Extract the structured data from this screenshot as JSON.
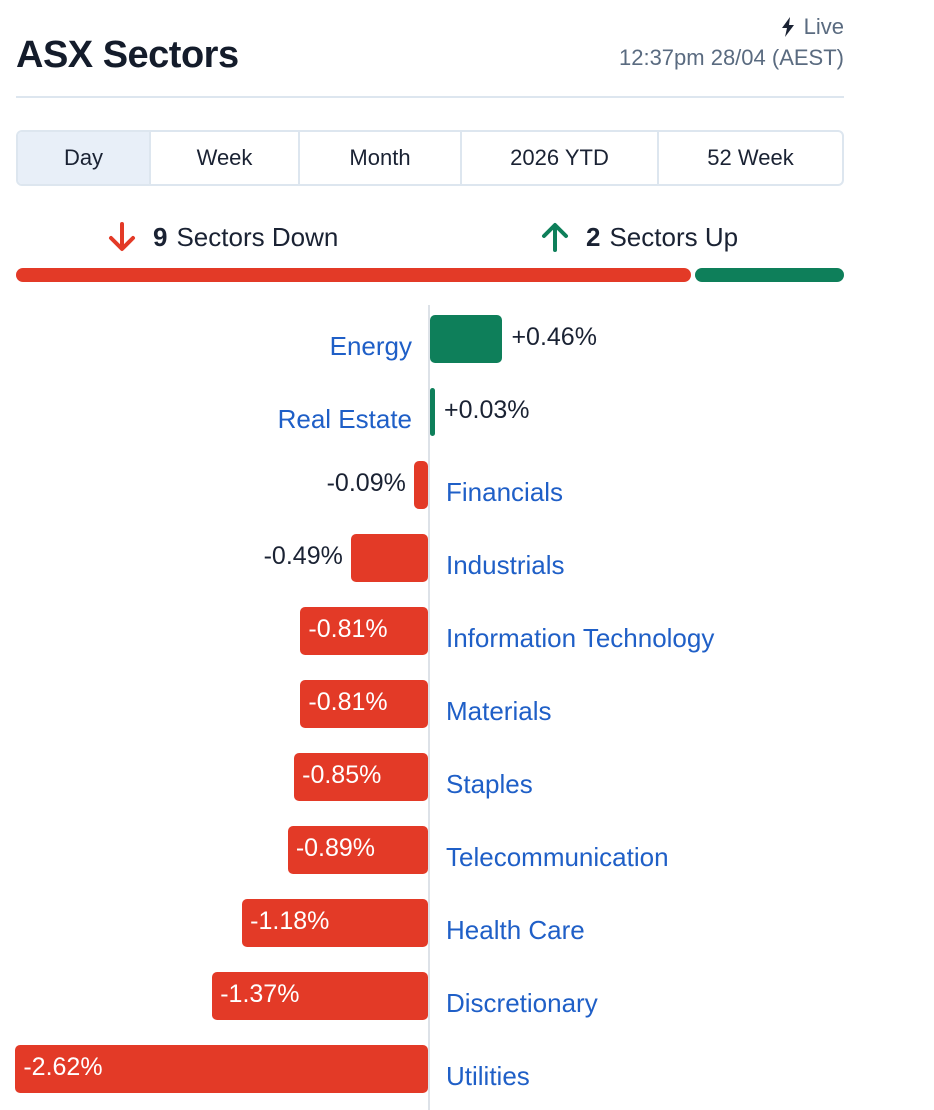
{
  "header": {
    "title": "ASX Sectors",
    "live_label": "Live",
    "timestamp": "12:37pm 28/04 (AEST)"
  },
  "tabs": [
    {
      "label": "Day",
      "active": true
    },
    {
      "label": "Week",
      "active": false
    },
    {
      "label": "Month",
      "active": false
    },
    {
      "label": "2026 YTD",
      "active": false
    },
    {
      "label": "52 Week",
      "active": false
    }
  ],
  "summary": {
    "down_count": "9",
    "down_label": "Sectors Down",
    "up_count": "2",
    "up_label": "Sectors Up"
  },
  "colors": {
    "down": "#e33a27",
    "up": "#0e7f5a",
    "link": "#1f5fc7"
  },
  "icons": {
    "down": "arrow-down-icon",
    "up": "arrow-up-icon",
    "live": "lightning-icon"
  },
  "chart_data": {
    "type": "bar",
    "orientation": "horizontal",
    "categories": [
      "Energy",
      "Real Estate",
      "Financials",
      "Industrials",
      "Information Technology",
      "Materials",
      "Staples",
      "Telecommunication",
      "Health Care",
      "Discretionary",
      "Utilities"
    ],
    "values": [
      0.46,
      0.03,
      -0.09,
      -0.49,
      -0.81,
      -0.81,
      -0.85,
      -0.89,
      -1.18,
      -1.37,
      -2.62
    ],
    "value_labels": [
      "+0.46%",
      "+0.03%",
      "-0.09%",
      "-0.49%",
      "-0.81%",
      "-0.81%",
      "-0.85%",
      "-0.89%",
      "-1.18%",
      "-1.37%",
      "-2.62%"
    ],
    "unit": "%"
  }
}
